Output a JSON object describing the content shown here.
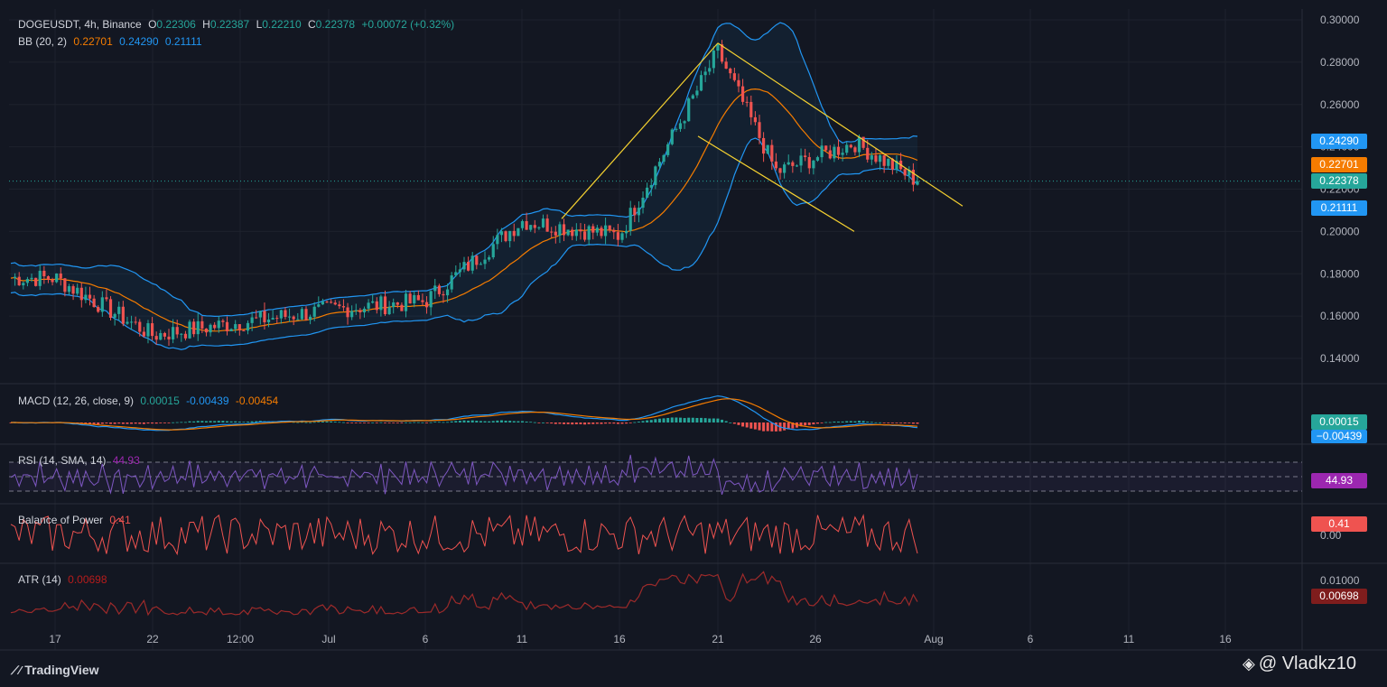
{
  "header": {
    "symbol": "DOGEUSDT, 4h, Binance",
    "o_label": "O",
    "o_val": "0.22306",
    "h_label": "H",
    "h_val": "0.22387",
    "l_label": "L",
    "l_val": "0.22210",
    "c_label": "C",
    "c_val": "0.22378",
    "change": "+0.00072 (+0.32%)"
  },
  "bb": {
    "label": "BB (20, 2)",
    "basis": "0.22701",
    "upper": "0.24290",
    "lower": "0.21111"
  },
  "macd": {
    "label": "MACD (12, 26, close, 9)",
    "hist": "0.00015",
    "macd": "-0.00439",
    "signal": "-0.00454"
  },
  "rsi": {
    "label": "RSI (14, SMA, 14)",
    "value": "44.93"
  },
  "bop": {
    "label": "Balance of Power",
    "value": "0.41",
    "zero": "0.00"
  },
  "atr": {
    "label": "ATR (14)",
    "value": "0.00698",
    "axis": "0.01000"
  },
  "tags": {
    "upper": "0.24290",
    "basis": "0.22701",
    "close": "0.22378",
    "lower": "0.21111",
    "macd_hist": "0.00015",
    "macd": "−0.00439"
  },
  "colors": {
    "bg": "#131722",
    "up": "#26a69a",
    "down": "#ef5350",
    "bb_basis": "#f57c00",
    "bb_band": "#2196f3",
    "trend": "#f5d130",
    "rsi": "#9c27b0",
    "atr": "#b71c1c"
  },
  "footer": {
    "brand": "TradingView",
    "watermark": "@ Vladkz10"
  },
  "chart_data": {
    "type": "candlestick",
    "symbol": "DOGEUSDT",
    "timeframe": "4h",
    "exchange": "Binance",
    "y_ticks": [
      "0.30000",
      "0.28000",
      "0.26000",
      "0.24000",
      "0.22000",
      "0.20000",
      "0.18000",
      "0.16000",
      "0.14000"
    ],
    "ylim": [
      0.13,
      0.3
    ],
    "x_ticks": [
      "17",
      "22",
      "12:00",
      "Jul",
      "6",
      "11",
      "16",
      "21",
      "26",
      "Aug",
      "6",
      "11",
      "16"
    ],
    "path_anchors": [
      {
        "t": "17",
        "close": 0.178
      },
      {
        "t": "22",
        "close": 0.151
      },
      {
        "t": "Jul",
        "close": 0.163
      },
      {
        "t": "6",
        "close": 0.167
      },
      {
        "t": "11",
        "close": 0.205
      },
      {
        "t": "16",
        "close": 0.198
      },
      {
        "t": "21",
        "close": 0.285
      },
      {
        "t": "24",
        "close": 0.228
      },
      {
        "t": "28",
        "close": 0.242
      },
      {
        "t": "31",
        "close": 0.22378
      }
    ],
    "bollinger": {
      "period": 20,
      "mult": 2,
      "basis": 0.22701,
      "upper": 0.2429,
      "lower": 0.21111
    },
    "trendlines": [
      {
        "from": [
          "13",
          0.206
        ],
        "to": [
          "21",
          0.289
        ]
      },
      {
        "from": [
          "21",
          0.289
        ],
        "to": [
          "Aug 2",
          0.212
        ]
      },
      {
        "from": [
          "20",
          0.245
        ],
        "to": [
          "28",
          0.2
        ]
      }
    ],
    "last": {
      "open": 0.22306,
      "high": 0.22387,
      "low": 0.2221,
      "close": 0.22378
    }
  }
}
